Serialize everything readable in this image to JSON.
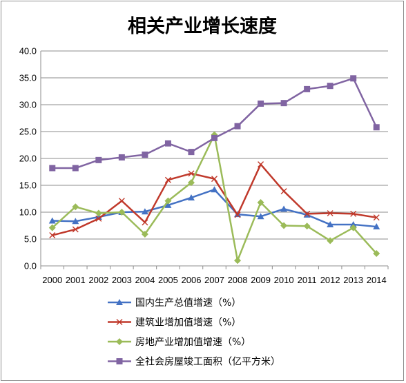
{
  "chart_data": {
    "type": "line",
    "title": "相关产业增长速度",
    "x": [
      "2000",
      "2001",
      "2002",
      "2003",
      "2004",
      "2005",
      "2006",
      "2007",
      "2008",
      "2009",
      "2010",
      "2011",
      "2012",
      "2013",
      "2014"
    ],
    "ylim": [
      0,
      40
    ],
    "yticks": [
      "0.0",
      "5.0",
      "10.0",
      "15.0",
      "20.0",
      "25.0",
      "30.0",
      "35.0",
      "40.0"
    ],
    "grid": true,
    "legend_position": "bottom",
    "series": [
      {
        "name": "国内生产总值增速（%）",
        "color": "#4472c4",
        "marker": "triangle",
        "values": [
          8.4,
          8.3,
          9.1,
          10.0,
          10.1,
          11.3,
          12.7,
          14.2,
          9.6,
          9.2,
          10.6,
          9.5,
          7.7,
          7.7,
          7.3
        ]
      },
      {
        "name": "建筑业增加值增速（%）",
        "color": "#c0392b",
        "marker": "x",
        "values": [
          5.7,
          6.8,
          8.8,
          12.1,
          8.1,
          16.0,
          17.2,
          16.2,
          9.5,
          18.9,
          13.9,
          9.7,
          9.8,
          9.7,
          9.0
        ]
      },
      {
        "name": "房地产业增加值增速（%）",
        "color": "#9bbb59",
        "marker": "diamond",
        "values": [
          7.1,
          11.0,
          9.8,
          10.0,
          5.9,
          12.1,
          15.5,
          24.4,
          1.0,
          11.8,
          7.5,
          7.4,
          4.7,
          7.1,
          2.3
        ]
      },
      {
        "name": "全社会房屋竣工面积（亿平方米）",
        "color": "#8064a2",
        "marker": "square",
        "values": [
          18.2,
          18.2,
          19.7,
          20.2,
          20.7,
          22.8,
          21.2,
          23.8,
          26.0,
          30.2,
          30.3,
          32.9,
          33.5,
          34.9,
          25.8
        ]
      }
    ]
  }
}
